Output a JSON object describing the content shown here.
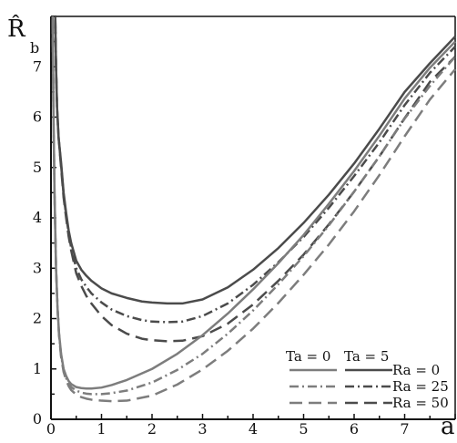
{
  "chart_data": {
    "type": "line",
    "title": "",
    "xlabel": "a",
    "ylabel": {
      "main": "R̂",
      "sub": "b"
    },
    "xlim": [
      0,
      8
    ],
    "ylim": [
      0,
      8
    ],
    "xticks": [
      "0",
      "1",
      "2",
      "3",
      "4",
      "5",
      "6",
      "7"
    ],
    "yticks": [
      "0",
      "1",
      "2",
      "3",
      "4",
      "5",
      "6",
      "7"
    ],
    "grid": false,
    "legend_position": "bottom-right",
    "legend": {
      "ta_labels": [
        "Ta = 0",
        "Ta = 5"
      ],
      "ra_labels": [
        "Ra = 0",
        "Ra = 25",
        "Ra = 50"
      ]
    },
    "series": [
      {
        "ta": "Ta = 5",
        "ra": "Ra = 0",
        "color": "#4b4b4b",
        "style": "solid",
        "x": [
          0.08,
          0.1,
          0.12,
          0.15,
          0.2,
          0.25,
          0.3,
          0.35,
          0.4,
          0.5,
          0.6,
          0.7,
          0.8,
          1,
          1.2,
          1.5,
          1.8,
          2,
          2.3,
          2.6,
          3,
          3.5,
          4,
          4.5,
          5,
          5.5,
          6,
          6.5,
          7,
          7.5,
          8
        ],
        "y": [
          8.3,
          7.0,
          6.2,
          5.6,
          5.1,
          4.5,
          4.1,
          3.75,
          3.5,
          3.15,
          2.97,
          2.85,
          2.75,
          2.6,
          2.5,
          2.41,
          2.34,
          2.32,
          2.3,
          2.3,
          2.38,
          2.62,
          2.97,
          3.4,
          3.9,
          4.46,
          5.08,
          5.77,
          6.5,
          7.07,
          7.6
        ]
      },
      {
        "ta": "Ta = 5",
        "ra": "Ra = 25",
        "color": "#4b4b4b",
        "style": "dashdot",
        "x": [
          0.08,
          0.1,
          0.12,
          0.15,
          0.2,
          0.25,
          0.3,
          0.35,
          0.4,
          0.5,
          0.6,
          0.7,
          0.8,
          1,
          1.2,
          1.5,
          1.8,
          2,
          2.3,
          2.6,
          3,
          3.5,
          4,
          4.5,
          5,
          5.5,
          6,
          6.5,
          7,
          7.5,
          8
        ],
        "y": [
          8.3,
          7.0,
          6.2,
          5.6,
          5.05,
          4.45,
          4.05,
          3.7,
          3.4,
          3.0,
          2.78,
          2.63,
          2.5,
          2.32,
          2.18,
          2.05,
          1.97,
          1.94,
          1.93,
          1.94,
          2.05,
          2.3,
          2.67,
          3.12,
          3.62,
          4.2,
          4.83,
          5.5,
          6.24,
          6.88,
          7.4
        ]
      },
      {
        "ta": "Ta = 5",
        "ra": "Ra = 50",
        "color": "#4b4b4b",
        "style": "dashed",
        "x": [
          0.08,
          0.1,
          0.12,
          0.15,
          0.2,
          0.25,
          0.3,
          0.35,
          0.4,
          0.5,
          0.6,
          0.7,
          0.8,
          1,
          1.2,
          1.5,
          1.8,
          2,
          2.3,
          2.6,
          3,
          3.5,
          4,
          4.5,
          5,
          5.5,
          6,
          6.5,
          7,
          7.5,
          8
        ],
        "y": [
          8.3,
          7.0,
          6.2,
          5.6,
          5.0,
          4.4,
          4.0,
          3.63,
          3.35,
          2.9,
          2.65,
          2.45,
          2.3,
          2.05,
          1.87,
          1.7,
          1.6,
          1.57,
          1.55,
          1.56,
          1.65,
          1.9,
          2.28,
          2.75,
          3.27,
          3.87,
          4.52,
          5.22,
          5.98,
          6.7,
          7.2
        ]
      },
      {
        "ta": "Ta = 0",
        "ra": "Ra = 0",
        "color": "#7d7d7d",
        "style": "solid",
        "x": [
          0.03,
          0.05,
          0.07,
          0.1,
          0.13,
          0.16,
          0.2,
          0.25,
          0.3,
          0.35,
          0.4,
          0.5,
          0.6,
          0.7,
          0.8,
          1,
          1.2,
          1.5,
          2,
          2.5,
          3,
          3.5,
          4,
          4.5,
          5,
          5.5,
          6,
          6.5,
          7,
          7.5,
          8
        ],
        "y": [
          8.3,
          6.0,
          4.5,
          3.0,
          2.2,
          1.7,
          1.3,
          1.0,
          0.86,
          0.76,
          0.7,
          0.64,
          0.62,
          0.61,
          0.61,
          0.63,
          0.68,
          0.78,
          1.0,
          1.3,
          1.67,
          2.1,
          2.58,
          3.1,
          3.66,
          4.28,
          4.93,
          5.63,
          6.37,
          6.98,
          7.5
        ]
      },
      {
        "ta": "Ta = 0",
        "ra": "Ra = 25",
        "color": "#7d7d7d",
        "style": "dashdot",
        "x": [
          0.03,
          0.05,
          0.07,
          0.1,
          0.13,
          0.16,
          0.2,
          0.25,
          0.3,
          0.35,
          0.4,
          0.5,
          0.6,
          0.7,
          0.8,
          1,
          1.2,
          1.5,
          2,
          2.5,
          3,
          3.5,
          4,
          4.5,
          5,
          5.5,
          6,
          6.5,
          7,
          7.5,
          8
        ],
        "y": [
          8.3,
          6.0,
          4.5,
          3.0,
          2.2,
          1.68,
          1.27,
          0.97,
          0.82,
          0.71,
          0.64,
          0.57,
          0.53,
          0.51,
          0.5,
          0.5,
          0.52,
          0.57,
          0.73,
          0.98,
          1.3,
          1.7,
          2.16,
          2.68,
          3.24,
          3.85,
          4.52,
          5.22,
          5.97,
          6.62,
          7.2
        ]
      },
      {
        "ta": "Ta = 0",
        "ra": "Ra = 50",
        "color": "#7d7d7d",
        "style": "dashed",
        "x": [
          0.03,
          0.05,
          0.07,
          0.1,
          0.13,
          0.16,
          0.2,
          0.25,
          0.3,
          0.35,
          0.4,
          0.5,
          0.6,
          0.7,
          0.8,
          1,
          1.2,
          1.5,
          2,
          2.5,
          3,
          3.5,
          4,
          4.5,
          5,
          5.5,
          6,
          6.5,
          7,
          7.5,
          8
        ],
        "y": [
          8.3,
          6.0,
          4.5,
          3.0,
          2.2,
          1.66,
          1.24,
          0.94,
          0.78,
          0.66,
          0.58,
          0.49,
          0.44,
          0.41,
          0.39,
          0.37,
          0.36,
          0.37,
          0.47,
          0.69,
          0.99,
          1.36,
          1.8,
          2.31,
          2.87,
          3.47,
          4.13,
          4.85,
          5.62,
          6.35,
          6.95
        ]
      }
    ]
  }
}
